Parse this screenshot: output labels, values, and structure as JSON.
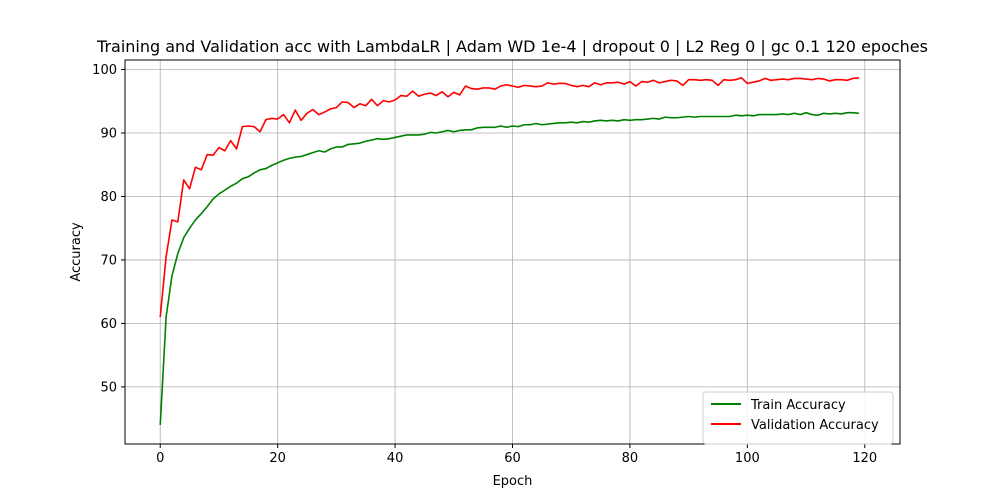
{
  "chart_data": {
    "type": "line",
    "title": "Training and Validation acc with LambdaLR | Adam WD 1e-4 | dropout 0 | L2 Reg 0 | gc 0.1 120 epoches",
    "xlabel": "Epoch",
    "ylabel": "Accuracy",
    "xlim": [
      -6,
      126
    ],
    "ylim": [
      41,
      101.5
    ],
    "xticks": [
      0,
      20,
      40,
      60,
      80,
      100,
      120
    ],
    "yticks": [
      50,
      60,
      70,
      80,
      90,
      100
    ],
    "grid": true,
    "legend_position": "bottom-right",
    "x": [
      0,
      1,
      2,
      3,
      4,
      5,
      6,
      7,
      8,
      9,
      10,
      11,
      12,
      13,
      14,
      15,
      16,
      17,
      18,
      19,
      20,
      21,
      22,
      23,
      24,
      25,
      26,
      27,
      28,
      29,
      30,
      31,
      32,
      33,
      34,
      35,
      36,
      37,
      38,
      39,
      40,
      41,
      42,
      43,
      44,
      45,
      46,
      47,
      48,
      49,
      50,
      51,
      52,
      53,
      54,
      55,
      56,
      57,
      58,
      59,
      60,
      61,
      62,
      63,
      64,
      65,
      66,
      67,
      68,
      69,
      70,
      71,
      72,
      73,
      74,
      75,
      76,
      77,
      78,
      79,
      80,
      81,
      82,
      83,
      84,
      85,
      86,
      87,
      88,
      89,
      90,
      91,
      92,
      93,
      94,
      95,
      96,
      97,
      98,
      99,
      100,
      101,
      102,
      103,
      104,
      105,
      106,
      107,
      108,
      109,
      110,
      111,
      112,
      113,
      114,
      115,
      116,
      117,
      118,
      119
    ],
    "series": [
      {
        "name": "Train Accuracy",
        "color": "#008000",
        "values": [
          44.0,
          61.0,
          67.5,
          71.0,
          73.5,
          75.0,
          76.3,
          77.3,
          78.4,
          79.6,
          80.4,
          81.0,
          81.6,
          82.1,
          82.8,
          83.1,
          83.7,
          84.2,
          84.4,
          84.9,
          85.3,
          85.7,
          86.0,
          86.2,
          86.3,
          86.6,
          86.9,
          87.2,
          87.0,
          87.5,
          87.8,
          87.8,
          88.2,
          88.3,
          88.4,
          88.7,
          88.9,
          89.1,
          89.0,
          89.1,
          89.3,
          89.5,
          89.7,
          89.7,
          89.7,
          89.8,
          90.1,
          90.0,
          90.2,
          90.4,
          90.2,
          90.4,
          90.5,
          90.5,
          90.8,
          90.9,
          90.9,
          90.9,
          91.1,
          90.9,
          91.1,
          91.0,
          91.3,
          91.3,
          91.5,
          91.3,
          91.4,
          91.5,
          91.6,
          91.6,
          91.7,
          91.6,
          91.8,
          91.7,
          91.9,
          92.0,
          91.9,
          92.0,
          91.9,
          92.1,
          92.0,
          92.1,
          92.1,
          92.2,
          92.3,
          92.2,
          92.5,
          92.4,
          92.4,
          92.5,
          92.6,
          92.5,
          92.6,
          92.6,
          92.6,
          92.6,
          92.6,
          92.6,
          92.8,
          92.7,
          92.8,
          92.7,
          92.9,
          92.9,
          92.9,
          92.9,
          93.0,
          92.9,
          93.1,
          92.9,
          93.2,
          92.9,
          92.8,
          93.1,
          93.0,
          93.1,
          93.0,
          93.2,
          93.2,
          93.1
        ]
      },
      {
        "name": "Validation Accuracy",
        "color": "#ff0000",
        "values": [
          61.0,
          70.5,
          76.3,
          76.0,
          82.6,
          81.2,
          84.6,
          84.2,
          86.6,
          86.5,
          87.7,
          87.2,
          88.8,
          87.5,
          91.0,
          91.1,
          91.0,
          90.2,
          92.1,
          92.3,
          92.2,
          92.9,
          91.6,
          93.6,
          92.0,
          93.1,
          93.7,
          92.9,
          93.3,
          93.8,
          94.0,
          94.9,
          94.8,
          94.0,
          94.6,
          94.3,
          95.3,
          94.3,
          95.1,
          94.9,
          95.2,
          95.9,
          95.8,
          96.6,
          95.8,
          96.1,
          96.3,
          95.9,
          96.5,
          95.7,
          96.4,
          96.0,
          97.4,
          97.0,
          96.9,
          97.1,
          97.1,
          96.9,
          97.4,
          97.6,
          97.4,
          97.2,
          97.5,
          97.4,
          97.3,
          97.4,
          97.9,
          97.7,
          97.8,
          97.8,
          97.5,
          97.3,
          97.5,
          97.3,
          97.9,
          97.6,
          97.9,
          97.9,
          98.0,
          97.7,
          98.1,
          97.4,
          98.1,
          98.0,
          98.3,
          97.9,
          98.1,
          98.3,
          98.2,
          97.5,
          98.4,
          98.4,
          98.3,
          98.4,
          98.3,
          97.5,
          98.4,
          98.3,
          98.4,
          98.7,
          97.8,
          98.0,
          98.2,
          98.6,
          98.3,
          98.4,
          98.5,
          98.4,
          98.6,
          98.6,
          98.5,
          98.4,
          98.6,
          98.5,
          98.2,
          98.4,
          98.4,
          98.3,
          98.6,
          98.7
        ]
      }
    ]
  }
}
